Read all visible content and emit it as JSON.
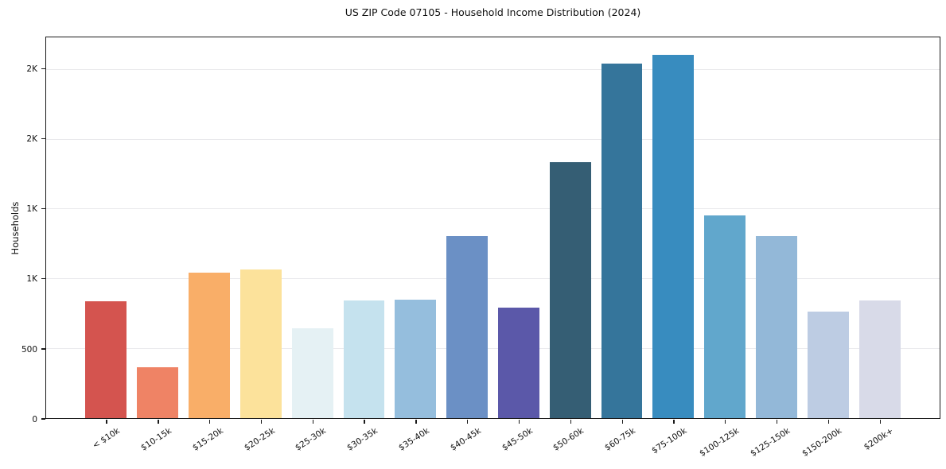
{
  "chart_data": {
    "type": "bar",
    "title": "US ZIP Code 07105 - Household Income Distribution (2024)",
    "xlabel": "",
    "ylabel": "Households",
    "legend_position": "none",
    "grid": "horizontal",
    "background_color": "#ffffff",
    "grid_color": "#e9e9ec",
    "axis_color": "#1a1a1a",
    "ylim": [
      0,
      2730
    ],
    "yticks": [
      {
        "value": 0,
        "label": "0"
      },
      {
        "value": 500,
        "label": "500"
      },
      {
        "value": 1000,
        "label": "1K"
      },
      {
        "value": 1500,
        "label": "1K"
      },
      {
        "value": 2000,
        "label": "2K"
      },
      {
        "value": 2500,
        "label": "2K"
      }
    ],
    "categories": [
      "< $10k",
      "$10-15k",
      "$15-20k",
      "$20-25k",
      "$25-30k",
      "$30-35k",
      "$35-40k",
      "$40-45k",
      "$45-50k",
      "$50-60k",
      "$60-75k",
      "$75-100k",
      "$100-125k",
      "$125-150k",
      "$150-200k",
      "$200k+"
    ],
    "values": [
      840,
      365,
      1045,
      1065,
      645,
      845,
      850,
      1305,
      790,
      1835,
      2540,
      2605,
      1455,
      1305,
      765,
      845
    ],
    "bar_colors": [
      "#d4544f",
      "#ef8365",
      "#f9ae68",
      "#fce29b",
      "#e5f1f4",
      "#c5e2ee",
      "#95bedd",
      "#6b90c5",
      "#5b58a9",
      "#355e74",
      "#35759b",
      "#388cbf",
      "#61a7cc",
      "#93b8d8",
      "#bdcce3",
      "#d8dae8"
    ]
  }
}
